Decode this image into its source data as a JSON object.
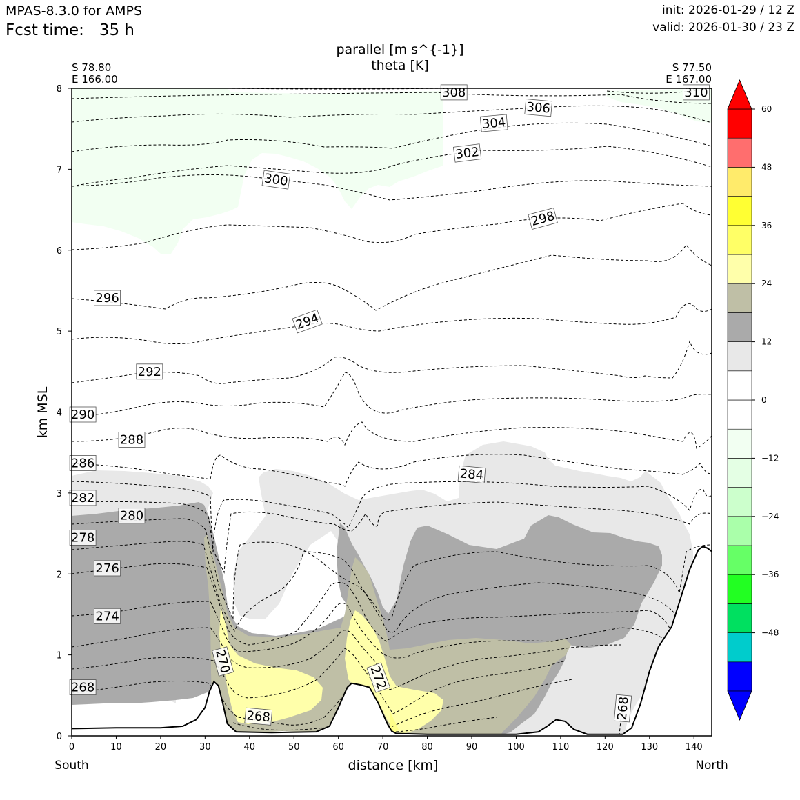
{
  "header": {
    "model": "MPAS-8.3.0 for AMPS",
    "fcst_label": "Fcst time:",
    "fcst_value": "35 h",
    "init": "init: 2026-01-29 / 12 Z",
    "valid": "valid: 2026-01-30 / 23 Z"
  },
  "endpoints": {
    "left_lat": "S 78.80",
    "left_lon": "E 166.00",
    "right_lat": "S 77.50",
    "right_lon": "E 167.00",
    "left_dir": "South",
    "right_dir": "North"
  },
  "chart_data": {
    "type": "contour cross-section",
    "title_line1": "parallel [m s^{-1}]",
    "title_line2": "theta [K]",
    "xlabel": "distance [km]",
    "ylabel": "km MSL",
    "xlim": [
      0,
      144
    ],
    "ylim": [
      0,
      8
    ],
    "xticks": [
      0,
      10,
      20,
      30,
      40,
      50,
      60,
      70,
      80,
      90,
      100,
      110,
      120,
      130,
      140
    ],
    "yticks": [
      0,
      1,
      2,
      3,
      4,
      5,
      6,
      7,
      8
    ],
    "colorbar": {
      "ticks": [
        -48,
        -36,
        -24,
        -12,
        0,
        12,
        24,
        36,
        48,
        60
      ],
      "levels": [
        -60,
        -54,
        -48,
        -42,
        -36,
        -30,
        -24,
        -18,
        -12,
        -6,
        0,
        6,
        12,
        18,
        24,
        30,
        36,
        42,
        48,
        54,
        60
      ],
      "colors": [
        "#0000ff",
        "#00cccc",
        "#00e060",
        "#22ff22",
        "#66ff66",
        "#aaffaa",
        "#ccffcc",
        "#e4ffe4",
        "#f2fff2",
        "#ffffff",
        "#ffffff",
        "#e8e8e8",
        "#aaaaaa",
        "#bfbfa6",
        "#ffffaa",
        "#ffff66",
        "#ffff33",
        "#ffeb6b",
        "#ff6e6e",
        "#ff0000"
      ]
    },
    "terrain": [
      [
        0,
        0.09
      ],
      [
        10,
        0.1
      ],
      [
        20,
        0.1
      ],
      [
        25,
        0.12
      ],
      [
        28,
        0.2
      ],
      [
        30,
        0.35
      ],
      [
        31,
        0.55
      ],
      [
        32,
        0.67
      ],
      [
        33,
        0.62
      ],
      [
        34,
        0.4
      ],
      [
        35,
        0.15
      ],
      [
        37,
        0.05
      ],
      [
        45,
        0.04
      ],
      [
        55,
        0.05
      ],
      [
        58,
        0.12
      ],
      [
        60,
        0.35
      ],
      [
        62,
        0.6
      ],
      [
        63,
        0.65
      ],
      [
        65,
        0.63
      ],
      [
        67,
        0.6
      ],
      [
        69,
        0.4
      ],
      [
        71,
        0.15
      ],
      [
        72,
        0.06
      ],
      [
        73,
        0.03
      ],
      [
        80,
        0.02
      ],
      [
        100,
        0.02
      ],
      [
        105,
        0.05
      ],
      [
        107,
        0.12
      ],
      [
        109,
        0.2
      ],
      [
        111,
        0.18
      ],
      [
        113,
        0.08
      ],
      [
        116,
        0.02
      ],
      [
        124,
        0.02
      ],
      [
        126,
        0.1
      ],
      [
        128,
        0.4
      ],
      [
        130,
        0.8
      ],
      [
        132,
        1.1
      ],
      [
        135,
        1.35
      ],
      [
        137,
        1.7
      ],
      [
        139,
        2.05
      ],
      [
        141,
        2.3
      ],
      [
        142,
        2.34
      ],
      [
        143,
        2.32
      ],
      [
        144,
        2.28
      ]
    ],
    "theta_labels": [
      {
        "text": "268",
        "x": 2.5,
        "y": 0.6,
        "rot": 0
      },
      {
        "text": "270",
        "x": 34,
        "y": 0.92,
        "rot": 75
      },
      {
        "text": "268",
        "x": 42,
        "y": 0.24,
        "rot": 5
      },
      {
        "text": "272",
        "x": 69,
        "y": 0.72,
        "rot": 70
      },
      {
        "text": "268",
        "x": 124,
        "y": 0.34,
        "rot": -85
      },
      {
        "text": "274",
        "x": 8,
        "y": 1.48,
        "rot": 0
      },
      {
        "text": "276",
        "x": 8,
        "y": 2.07,
        "rot": 0
      },
      {
        "text": "278",
        "x": 2.5,
        "y": 2.45,
        "rot": 0
      },
      {
        "text": "280",
        "x": 13.5,
        "y": 2.72,
        "rot": 0
      },
      {
        "text": "282",
        "x": 2.5,
        "y": 2.94,
        "rot": 0
      },
      {
        "text": "284",
        "x": 90,
        "y": 3.23,
        "rot": 5
      },
      {
        "text": "286",
        "x": 2.5,
        "y": 3.37,
        "rot": 0
      },
      {
        "text": "288",
        "x": 13.5,
        "y": 3.66,
        "rot": 0
      },
      {
        "text": "290",
        "x": 2.5,
        "y": 3.97,
        "rot": 0
      },
      {
        "text": "292",
        "x": 17.5,
        "y": 4.5,
        "rot": 0
      },
      {
        "text": "294",
        "x": 53,
        "y": 5.12,
        "rot": -20
      },
      {
        "text": "296",
        "x": 8,
        "y": 5.41,
        "rot": 0
      },
      {
        "text": "298",
        "x": 106,
        "y": 6.39,
        "rot": -15
      },
      {
        "text": "300",
        "x": 46,
        "y": 6.87,
        "rot": 8
      },
      {
        "text": "302",
        "x": 89,
        "y": 7.2,
        "rot": -7
      },
      {
        "text": "304",
        "x": 95,
        "y": 7.57,
        "rot": -5
      },
      {
        "text": "306",
        "x": 105,
        "y": 7.76,
        "rot": 5
      },
      {
        "text": "308",
        "x": 86,
        "y": 7.95,
        "rot": 0
      },
      {
        "text": "310",
        "x": 140.5,
        "y": 7.95,
        "rot": 0
      }
    ]
  }
}
